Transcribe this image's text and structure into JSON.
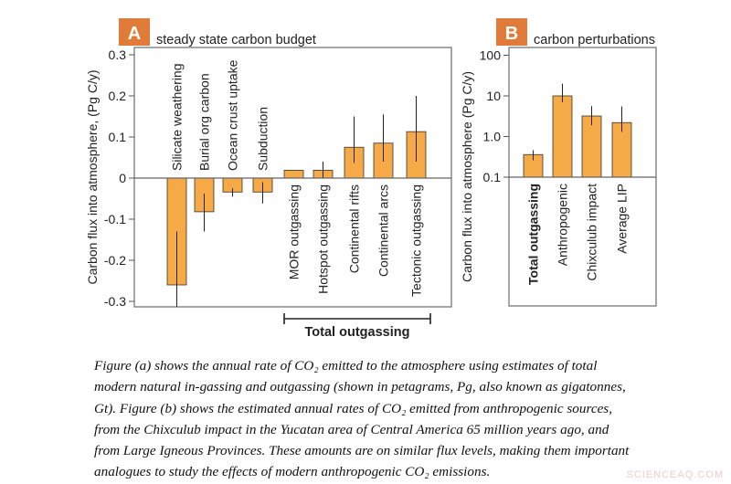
{
  "chart_data": [
    {
      "type": "bar",
      "panel_label": "A",
      "title": "steady state carbon budget",
      "ylabel": "Carbon flux into atmosphere, (Pg C/y)",
      "ylim": [
        -0.3,
        0.3
      ],
      "yticks": [
        "0.3",
        "0.2",
        "0.1",
        "0",
        "-0.1",
        "-0.2",
        "-0.3"
      ],
      "ytick_values": [
        0.3,
        0.2,
        0.1,
        0,
        -0.1,
        -0.2,
        -0.3
      ],
      "categories": [
        "Silicate weathering",
        "Burial org carbon",
        "Ocean crust uptake",
        "Subduction",
        "MOR outgassing",
        "Hotspot outgassing",
        "Continental rifts",
        "Continental arcs",
        "Tectonic outgassing"
      ],
      "values": [
        -0.26,
        -0.082,
        -0.034,
        -0.034,
        0.019,
        0.019,
        0.075,
        0.085,
        0.113
      ],
      "error_ranges": [
        [
          -0.35,
          -0.13
        ],
        [
          -0.13,
          -0.038
        ],
        [
          -0.045,
          -0.025
        ],
        [
          -0.062,
          -0.01
        ],
        null,
        [
          0.0,
          0.04
        ],
        [
          0.037,
          0.15
        ],
        [
          0.04,
          0.155
        ],
        [
          0.04,
          0.2
        ]
      ],
      "bracket_label": "Total outgassing",
      "grid": false,
      "bar_color": "#f5a947"
    },
    {
      "type": "bar",
      "panel_label": "B",
      "title": "carbon perturbations",
      "ylabel": "Carbon flux into atmosphere (Pg C/y)",
      "yscale": "log",
      "ylim": [
        0.1,
        100
      ],
      "yticks": [
        "100",
        "10",
        "1.0",
        "0.1"
      ],
      "ytick_values": [
        100,
        10,
        1,
        0.1
      ],
      "categories": [
        "Total outgassing",
        "Anthropogenic",
        "Chixculub impact",
        "Average LIP"
      ],
      "values": [
        0.36,
        10,
        3.2,
        2.2
      ],
      "error_ranges": [
        [
          0.26,
          0.46
        ],
        [
          7,
          20
        ],
        [
          1.9,
          5.6
        ],
        [
          1.3,
          5.5
        ]
      ],
      "grid": false,
      "bar_color": "#f5a947"
    }
  ],
  "label_color": "#e07b3a",
  "caption": {
    "lines": [
      "Figure (a) shows the annual rate of CO₂ emitted to the atmosphere using estimates of total",
      "modern natural in-gassing and outgassing (shown in petagrams, Pg, also known as gigatonnes,",
      "Gt).  Figure (b) shows the estimated annual rates of CO₂ emitted from anthropogenic sources,",
      "from the Chixculub impact in the Yucatan area of Central America 65 million years ago, and",
      "from Large Igneous Provinces. These amounts are on similar flux levels, making them important",
      "analogues to study the effects of modern anthropogenic CO₂ emissions."
    ]
  },
  "watermark": "SCIENCEAQ.COM"
}
